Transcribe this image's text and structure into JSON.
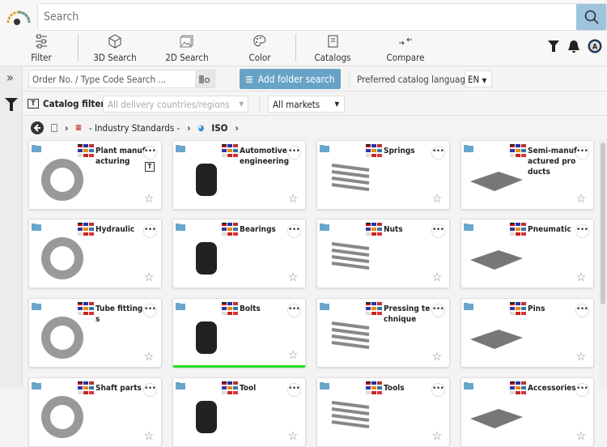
{
  "search": {
    "placeholder": "Search"
  },
  "toolbar": [
    {
      "label": "Filter",
      "icon": "sliders-icon"
    },
    {
      "label": "3D Search",
      "icon": "cube-icon"
    },
    {
      "label": "2D Search",
      "icon": "image-icon"
    },
    {
      "label": "Color",
      "icon": "palette-icon"
    },
    {
      "label": "Catalogs",
      "icon": "book-icon"
    },
    {
      "label": "Compare",
      "icon": "compare-arrows-icon"
    }
  ],
  "order_search": {
    "placeholder": "Order No. / Type Code Search ..."
  },
  "add_folder_search": "Add folder search",
  "preferred_language_label": "Preferred catalog language",
  "language": "EN",
  "catalog_filter": {
    "label": "Catalog filter",
    "countries_placeholder": "All delivery countries/regions",
    "markets": "All markets"
  },
  "breadcrumb": {
    "items": [
      "- Industry Standards -",
      "ISO"
    ]
  },
  "cards": [
    {
      "title": "Plant manufacturing"
    },
    {
      "title": "Automotive engineering"
    },
    {
      "title": "Springs"
    },
    {
      "title": "Semi-manufactured products"
    },
    {
      "title": "Hydraulic"
    },
    {
      "title": "Bearings"
    },
    {
      "title": "Nuts"
    },
    {
      "title": "Pneumatic"
    },
    {
      "title": "Tube fittings"
    },
    {
      "title": "Bolts"
    },
    {
      "title": "Pressing technique"
    },
    {
      "title": "Pins"
    },
    {
      "title": "Shaft parts"
    },
    {
      "title": "Tool"
    },
    {
      "title": "Tools"
    },
    {
      "title": "Accessories"
    }
  ],
  "colors": {
    "accent": "#67a3c6",
    "search_button": "#9cc4dc",
    "selected_underline": "#22dd22"
  }
}
